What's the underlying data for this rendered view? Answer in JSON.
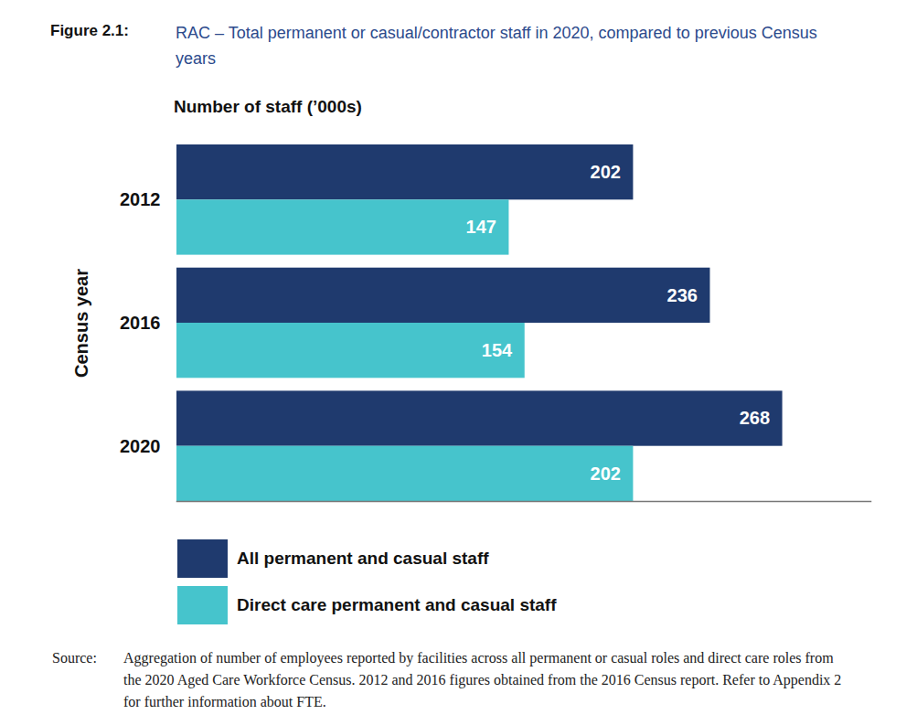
{
  "chart_data": {
    "type": "bar",
    "orientation": "horizontal",
    "title": "Figure 2.1:",
    "subtitle": "RAC – Total permanent or casual/contractor staff in 2020, compared to previous Census years",
    "xlabel": "Number of staff (’000s)",
    "ylabel": "Census year",
    "categories": [
      "2012",
      "2016",
      "2020"
    ],
    "series": [
      {
        "name": "All permanent and casual staff",
        "color": "#1f3a6e",
        "values": [
          202,
          236,
          268
        ]
      },
      {
        "name": "Direct care permanent and casual staff",
        "color": "#46c4cc",
        "values": [
          147,
          154,
          202
        ]
      }
    ],
    "xlim": [
      0,
      307
    ],
    "xticks": [],
    "tick_labels": "y",
    "data_labels": true,
    "legend": "bottom",
    "source_label": "Source:",
    "source": "Aggregation of number of employees reported by facilities across all permanent or casual roles and direct care roles from the 2020 Aged Care Workforce Census. 2012 and 2016 figures obtained from the 2016 Census report. Refer to Appendix 2 for further information about FTE."
  }
}
